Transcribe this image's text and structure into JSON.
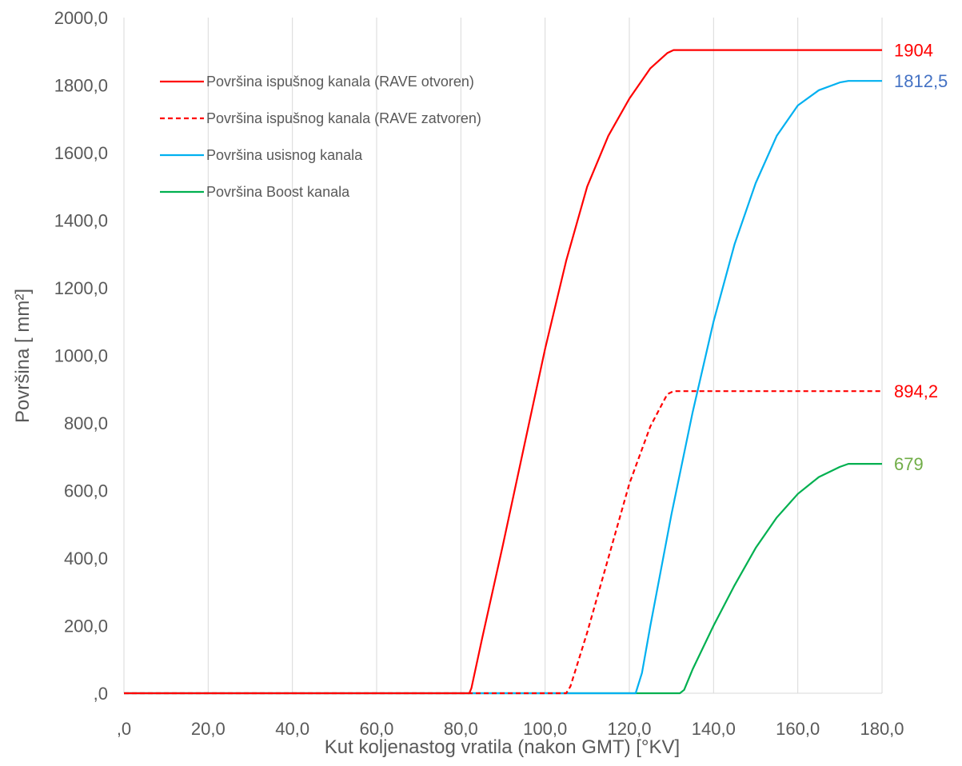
{
  "chart_data": {
    "type": "line",
    "title": "",
    "xlabel": "Kut koljenastog vratila (nakon GMT) [°KV]",
    "ylabel": "Površina [ mm²]",
    "xlim": [
      0,
      180
    ],
    "ylim": [
      0,
      2000
    ],
    "x_ticks": [
      0,
      20,
      40,
      60,
      80,
      100,
      120,
      140,
      160,
      180
    ],
    "x_tick_labels": [
      ",0",
      "20,0",
      "40,0",
      "60,0",
      "80,0",
      "100,0",
      "120,0",
      "140,0",
      "160,0",
      "180,0"
    ],
    "y_ticks": [
      0,
      200,
      400,
      600,
      800,
      1000,
      1200,
      1400,
      1600,
      1800,
      2000
    ],
    "y_tick_labels": [
      ",0",
      "200,0",
      "400,0",
      "600,0",
      "800,0",
      "1000,0",
      "1200,0",
      "1400,0",
      "1600,0",
      "1800,0",
      "2000,0"
    ],
    "grid": "vertical",
    "legend_position": "top-left",
    "series": [
      {
        "name": "Površina ispušnog kanala (RAVE otvoren)",
        "color": "#ff0000",
        "dash": "solid",
        "end_label": "1904",
        "end_label_color": "#ff0000",
        "points": [
          [
            0,
            0
          ],
          [
            82,
            0
          ],
          [
            82.5,
            15
          ],
          [
            85,
            160
          ],
          [
            90,
            440
          ],
          [
            95,
            730
          ],
          [
            100,
            1020
          ],
          [
            105,
            1280
          ],
          [
            110,
            1500
          ],
          [
            115,
            1650
          ],
          [
            120,
            1760
          ],
          [
            125,
            1850
          ],
          [
            129,
            1895
          ],
          [
            130.5,
            1904
          ],
          [
            180,
            1904
          ]
        ]
      },
      {
        "name": "Površina ispušnog kanala (RAVE zatvoren)",
        "color": "#ff0000",
        "dash": "dashed",
        "end_label": "894,2",
        "end_label_color": "#ff0000",
        "points": [
          [
            0,
            0
          ],
          [
            105,
            0
          ],
          [
            106,
            20
          ],
          [
            110,
            180
          ],
          [
            115,
            400
          ],
          [
            120,
            620
          ],
          [
            125,
            790
          ],
          [
            129,
            885
          ],
          [
            130.5,
            894.2
          ],
          [
            180,
            894.2
          ]
        ]
      },
      {
        "name": "Površina usisnog kanala",
        "color": "#00b0f0",
        "dash": "solid",
        "end_label": "1812,5",
        "end_label_color": "#4472c4",
        "points": [
          [
            0,
            0
          ],
          [
            121.5,
            0
          ],
          [
            123,
            60
          ],
          [
            125,
            200
          ],
          [
            130,
            530
          ],
          [
            135,
            830
          ],
          [
            140,
            1100
          ],
          [
            145,
            1330
          ],
          [
            150,
            1510
          ],
          [
            155,
            1650
          ],
          [
            160,
            1740
          ],
          [
            165,
            1785
          ],
          [
            170,
            1808
          ],
          [
            172,
            1812.5
          ],
          [
            180,
            1812.5
          ]
        ]
      },
      {
        "name": "Površina Boost kanala",
        "color": "#00b050",
        "dash": "solid",
        "end_label": "679",
        "end_label_color": "#70ad47",
        "points": [
          [
            0,
            0
          ],
          [
            132,
            0
          ],
          [
            133,
            10
          ],
          [
            135,
            70
          ],
          [
            140,
            200
          ],
          [
            145,
            320
          ],
          [
            150,
            430
          ],
          [
            155,
            520
          ],
          [
            160,
            590
          ],
          [
            165,
            640
          ],
          [
            170,
            670
          ],
          [
            172,
            679
          ],
          [
            180,
            679
          ]
        ]
      }
    ]
  }
}
